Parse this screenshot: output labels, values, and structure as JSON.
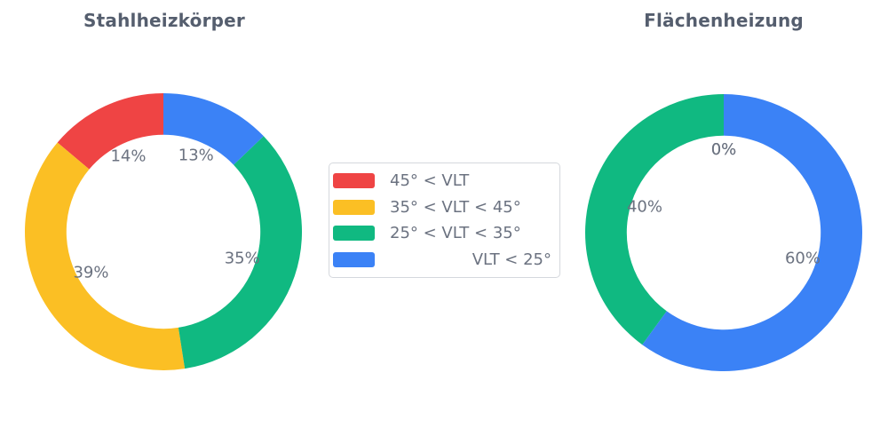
{
  "theme": {
    "background": "#ffffff",
    "title_color": "#555E6E",
    "label_color": "#6B7280",
    "legend_border_color": "#D5D8DD",
    "palette": [
      "#EF4444",
      "#FBBF24",
      "#10B981",
      "#3B82F6"
    ]
  },
  "legend": {
    "items": [
      {
        "label": "45° < VLT",
        "color": "#EF4444",
        "align": "left"
      },
      {
        "label": "35° < VLT < 45°",
        "color": "#FBBF24",
        "align": "left"
      },
      {
        "label": "25° < VLT < 35°",
        "color": "#10B981",
        "align": "left"
      },
      {
        "label": "VLT < 25°",
        "color": "#3B82F6",
        "align": "right"
      }
    ]
  },
  "chart_data": [
    {
      "type": "pie",
      "subtype": "donut",
      "title": "Stahlheizkörper",
      "categories": [
        "45° < VLT",
        "35° < VLT < 45°",
        "25° < VLT < 35°",
        "VLT < 25°"
      ],
      "values": [
        14,
        39,
        35,
        13
      ],
      "value_labels": [
        "14%",
        "39%",
        "35%",
        "13%"
      ],
      "colors": [
        "#EF4444",
        "#FBBF24",
        "#10B981",
        "#3B82F6"
      ],
      "start_angle_deg": 90,
      "direction": "counterclockwise",
      "inner_radius_ratio": 0.7,
      "label_distance_ratio": 0.6,
      "legend_position": "center-between-charts"
    },
    {
      "type": "pie",
      "subtype": "donut",
      "title": "Flächenheizung",
      "categories": [
        "45° < VLT",
        "35° < VLT < 45°",
        "25° < VLT < 35°",
        "VLT < 25°"
      ],
      "values": [
        0,
        0,
        40,
        60
      ],
      "value_labels": [
        "0%",
        "0%",
        "40%",
        "60%"
      ],
      "colors": [
        "#EF4444",
        "#FBBF24",
        "#10B981",
        "#3B82F6"
      ],
      "start_angle_deg": 90,
      "direction": "counterclockwise",
      "inner_radius_ratio": 0.7,
      "label_distance_ratio": 0.6,
      "legend_position": "center-between-charts"
    }
  ]
}
